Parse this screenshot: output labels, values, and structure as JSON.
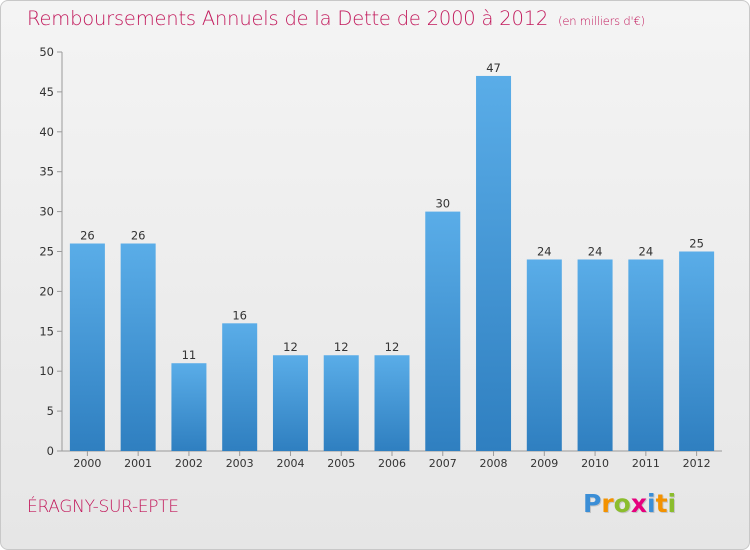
{
  "header": {
    "title": "Remboursements Annuels de la Dette de 2000 à 2012",
    "subtitle": "(en milliers d'€)"
  },
  "footer": {
    "city": "ÉRAGNY-SUR-EPTE"
  },
  "logo": {
    "text": "Proxiti",
    "letters": [
      "P",
      "r",
      "o",
      "x",
      "i",
      "t",
      "i"
    ],
    "colors": [
      "#3b8ed6",
      "#f39200",
      "#8bbd2d",
      "#e6007e",
      "#3b8ed6",
      "#f39200",
      "#8bbd2d"
    ]
  },
  "colors": {
    "bar_light": "#5aade8",
    "bar_dark": "#2f7fc0",
    "title": "#c2185b"
  },
  "chart_data": {
    "type": "bar",
    "title": "Remboursements Annuels de la Dette de 2000 à 2012",
    "subtitle": "(en milliers d'€)",
    "categories": [
      "2000",
      "2001",
      "2002",
      "2003",
      "2004",
      "2005",
      "2006",
      "2007",
      "2008",
      "2009",
      "2010",
      "2011",
      "2012"
    ],
    "values": [
      26,
      26,
      11,
      16,
      12,
      12,
      12,
      30,
      47,
      24,
      24,
      24,
      25
    ],
    "ylim": [
      0,
      50
    ],
    "yticks": [
      0,
      5,
      10,
      15,
      20,
      25,
      30,
      35,
      40,
      45,
      50
    ],
    "xlabel": "",
    "ylabel": "",
    "grid": false
  }
}
